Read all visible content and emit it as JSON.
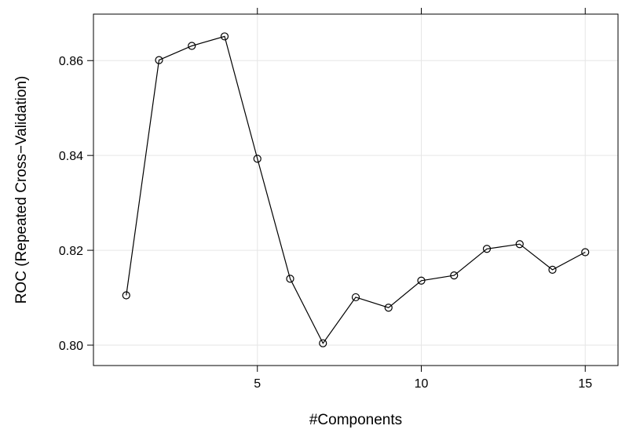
{
  "chart_data": {
    "type": "line",
    "title": "",
    "xlabel": "#Components",
    "ylabel": "ROC (Repeated Cross−Validation)",
    "xlim": [
      0.0,
      16.0
    ],
    "ylim": [
      0.7957,
      0.8698
    ],
    "x_ticks": [
      5,
      10,
      15
    ],
    "x_tick_labels": [
      "5",
      "10",
      "15"
    ],
    "y_ticks": [
      0.8,
      0.82,
      0.84,
      0.86
    ],
    "y_tick_labels": [
      "0.80",
      "0.82",
      "0.84",
      "0.86"
    ],
    "grid": true,
    "marker": "open-circle",
    "line_color": "#000000",
    "grid_color": "#e6e6e6",
    "series": [
      {
        "x": [
          1,
          2,
          3,
          4,
          5,
          6,
          7,
          8,
          9,
          10,
          11,
          12,
          13,
          14,
          15
        ],
        "values": [
          0.8105,
          0.8601,
          0.8631,
          0.8651,
          0.8393,
          0.814,
          0.8004,
          0.8101,
          0.8079,
          0.8136,
          0.8147,
          0.8203,
          0.8213,
          0.8159,
          0.8196
        ]
      }
    ]
  }
}
